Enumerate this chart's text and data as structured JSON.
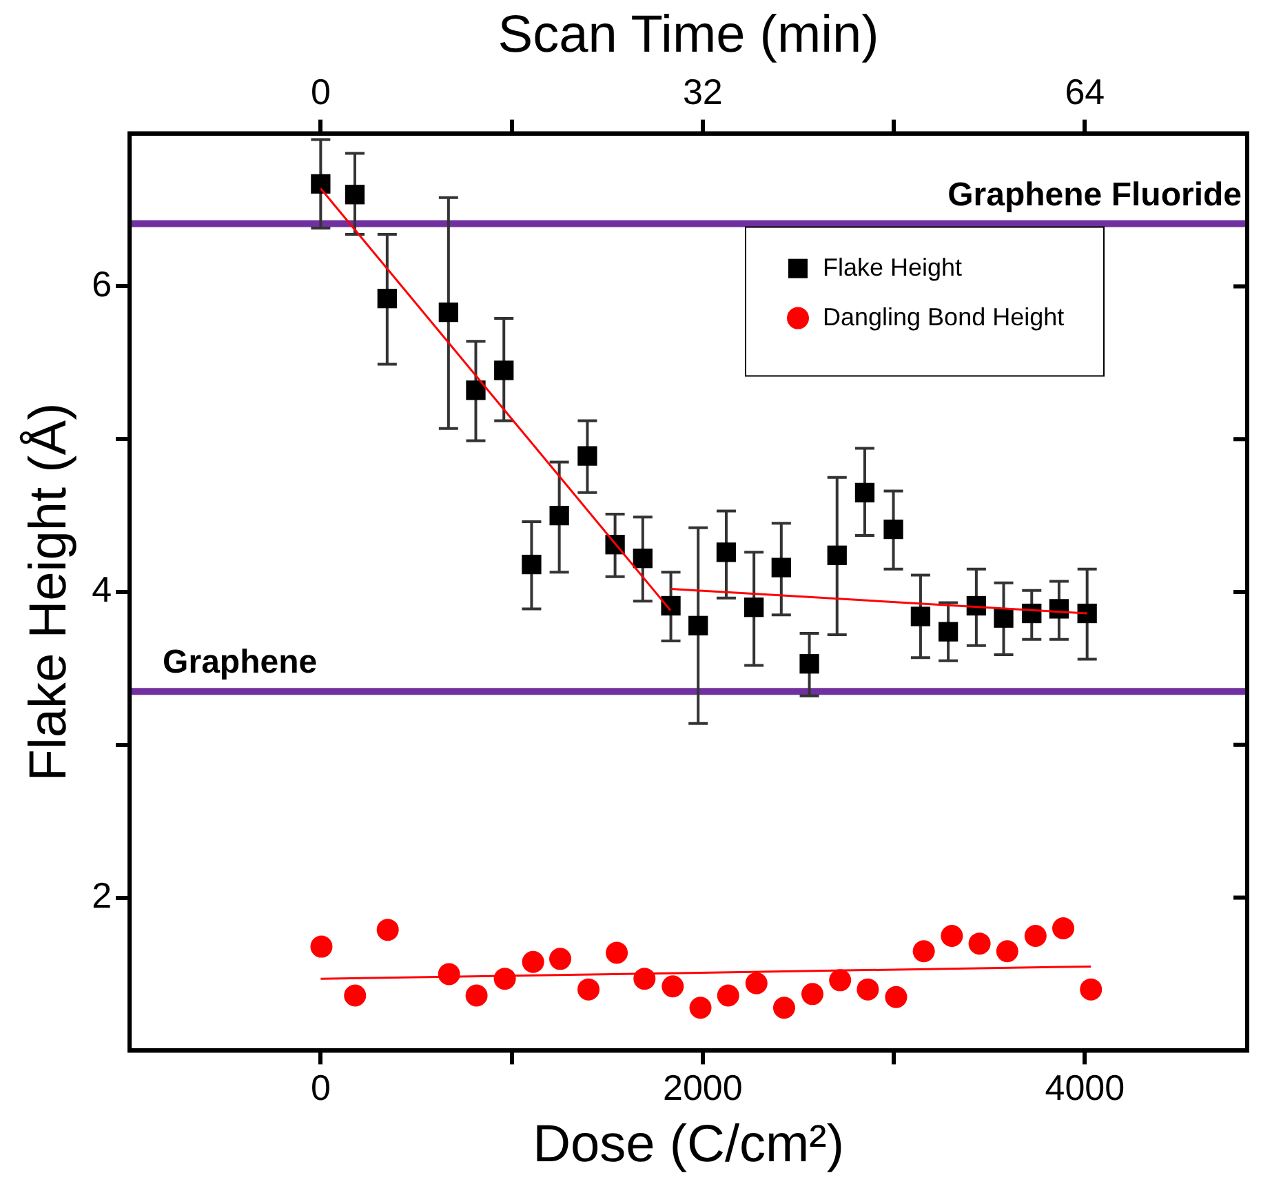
{
  "chart_data": {
    "type": "scatter",
    "xlabel": "Dose (C/cm²)",
    "ylabel": "Flake Height (Å)",
    "x2label": "Scan Time (min)",
    "xlim": [
      -1000,
      4850
    ],
    "xticks": [
      0,
      {
        "value": 1000,
        "label": null
      },
      2000,
      {
        "value": 3000,
        "label": null
      },
      4000
    ],
    "x2lim": [
      -16,
      77.6
    ],
    "x2ticks": [
      0,
      {
        "value": 16,
        "label": null
      },
      32,
      {
        "value": 48,
        "label": null
      },
      64
    ],
    "ylim": [
      1,
      7
    ],
    "yticks": [
      2,
      {
        "value": 3,
        "label": null
      },
      4,
      {
        "value": 5,
        "label": null
      },
      6
    ],
    "grid": false,
    "legend": "top right",
    "ref_lines": [
      {
        "axis": "y",
        "value": 6.41,
        "label": "Graphene Fluoride",
        "color": "#7030a0"
      },
      {
        "axis": "y",
        "value": 3.35,
        "label": "Graphene",
        "color": "#7030a0"
      }
    ],
    "series": [
      {
        "name": "Flake Height",
        "color": "#000000",
        "marker": "square",
        "x": [
          0,
          179,
          348,
          669,
          812,
          959,
          1104,
          1249,
          1396,
          1541,
          1686,
          1833,
          1976,
          2123,
          2268,
          2411,
          2558,
          2703,
          2848,
          2998,
          3140,
          3285,
          3432,
          3575,
          3722,
          3865,
          4012
        ],
        "values": [
          6.67,
          6.6,
          5.92,
          5.83,
          5.32,
          5.45,
          4.18,
          4.5,
          4.89,
          4.31,
          4.22,
          3.91,
          3.78,
          4.26,
          3.9,
          4.16,
          3.53,
          4.24,
          4.65,
          4.41,
          3.84,
          3.74,
          3.91,
          3.83,
          3.86,
          3.89,
          3.86
        ],
        "errors": [
          [
            6.38,
            6.96
          ],
          [
            6.34,
            6.87
          ],
          [
            5.49,
            6.34
          ],
          [
            5.07,
            6.58
          ],
          [
            4.99,
            5.64
          ],
          [
            5.12,
            5.79
          ],
          [
            3.89,
            4.46
          ],
          [
            4.13,
            4.85
          ],
          [
            4.65,
            5.12
          ],
          [
            4.1,
            4.51
          ],
          [
            3.94,
            4.49
          ],
          [
            3.68,
            4.13
          ],
          [
            3.14,
            4.42
          ],
          [
            3.96,
            4.53
          ],
          [
            3.52,
            4.26
          ],
          [
            3.85,
            4.45
          ],
          [
            3.32,
            3.73
          ],
          [
            3.72,
            4.75
          ],
          [
            4.37,
            4.94
          ],
          [
            4.15,
            4.66
          ],
          [
            3.57,
            4.11
          ],
          [
            3.55,
            3.93
          ],
          [
            3.65,
            4.15
          ],
          [
            3.59,
            4.06
          ],
          [
            3.69,
            4.01
          ],
          [
            3.69,
            4.07
          ],
          [
            3.56,
            4.15
          ]
        ]
      },
      {
        "name": "Dangling Bond Height",
        "color": "#ff0000",
        "marker": "circle",
        "x": [
          4,
          180,
          351,
          672,
          816,
          964,
          1112,
          1254,
          1402,
          1550,
          1695,
          1843,
          1988,
          2133,
          2281,
          2426,
          2574,
          2719,
          2864,
          3012,
          3157,
          3304,
          3449,
          3594,
          3742,
          3887,
          4032
        ],
        "values": [
          1.68,
          1.36,
          1.79,
          1.5,
          1.36,
          1.47,
          1.58,
          1.6,
          1.4,
          1.64,
          1.47,
          1.42,
          1.28,
          1.36,
          1.44,
          1.28,
          1.37,
          1.46,
          1.4,
          1.35,
          1.65,
          1.75,
          1.7,
          1.65,
          1.75,
          1.8,
          1.4
        ]
      },
      {
        "type": "line",
        "color": "#ff0000",
        "marker": "none",
        "line_style": "solid",
        "x": [
          0,
          1831
        ],
        "values": [
          6.64,
          3.88
        ]
      },
      {
        "type": "line",
        "color": "#ff0000",
        "marker": "none",
        "line_style": "solid",
        "x": [
          1833,
          4012
        ],
        "values": [
          4.02,
          3.86
        ]
      },
      {
        "type": "line",
        "color": "#ff0000",
        "marker": "none",
        "line_style": "solid",
        "x": [
          0,
          4032
        ],
        "values": [
          1.47,
          1.55
        ]
      }
    ]
  }
}
